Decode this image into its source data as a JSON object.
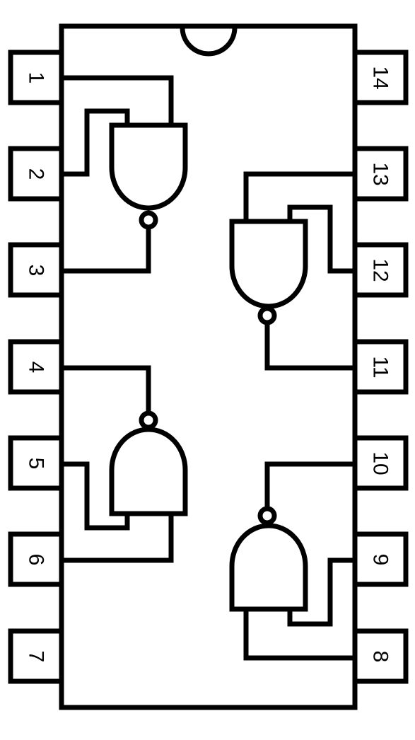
{
  "diagram": {
    "stroke_color": "#000000",
    "background": "#ffffff",
    "pins_left": [
      "1",
      "2",
      "3",
      "4",
      "5",
      "6",
      "7"
    ],
    "pins_right": [
      "14",
      "13",
      "12",
      "11",
      "10",
      "9",
      "8"
    ],
    "gates": [
      {
        "type": "nand",
        "inputs": [
          "1",
          "2"
        ],
        "output": "3"
      },
      {
        "type": "nand",
        "inputs": [
          "5",
          "6"
        ],
        "output": "4"
      },
      {
        "type": "nand",
        "inputs": [
          "12",
          "13"
        ],
        "output": "11"
      },
      {
        "type": "nand",
        "inputs": [
          "8",
          "9"
        ],
        "output": "10"
      }
    ]
  }
}
